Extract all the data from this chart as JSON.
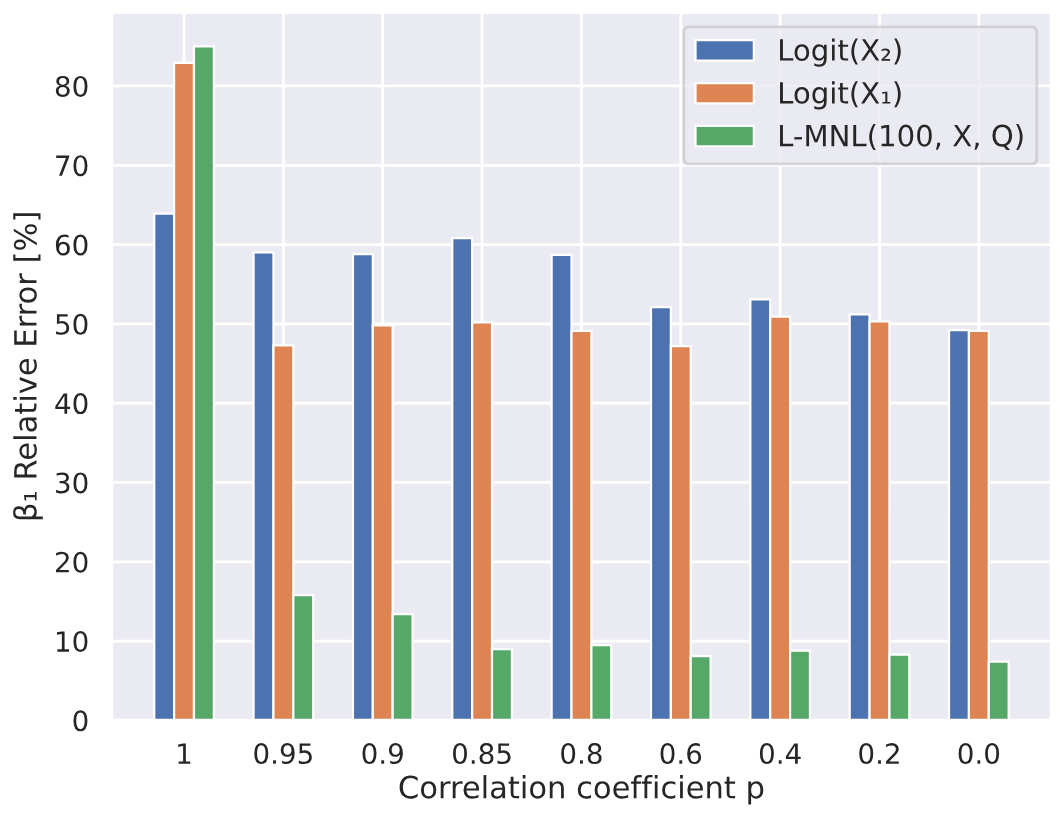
{
  "chart_data": {
    "type": "bar",
    "xlabel": "Correlation coefficient p",
    "ylabel": "β₁ Relative Error [%]",
    "categories": [
      "1",
      "0.95",
      "0.9",
      "0.85",
      "0.8",
      "0.6",
      "0.4",
      "0.2",
      "0.0"
    ],
    "series": [
      {
        "name": "Logit(X₂)",
        "color": "#4c72b0",
        "values": [
          63.9,
          59.0,
          58.8,
          60.8,
          58.7,
          52.1,
          53.1,
          51.2,
          49.2
        ]
      },
      {
        "name": "Logit(X₁)",
        "color": "#dd8452",
        "values": [
          82.9,
          47.3,
          49.8,
          50.2,
          49.1,
          47.2,
          50.9,
          50.3,
          49.1
        ]
      },
      {
        "name": "L-MNL(100, X, Q)",
        "color": "#55a868",
        "values": [
          85.0,
          15.8,
          13.4,
          9.0,
          9.5,
          8.1,
          8.8,
          8.3,
          7.4
        ]
      }
    ],
    "ylim": [
      0,
      89.3
    ],
    "yticks": [
      0,
      10,
      20,
      30,
      40,
      50,
      60,
      70,
      80
    ],
    "grid": true,
    "legend": "top right"
  }
}
